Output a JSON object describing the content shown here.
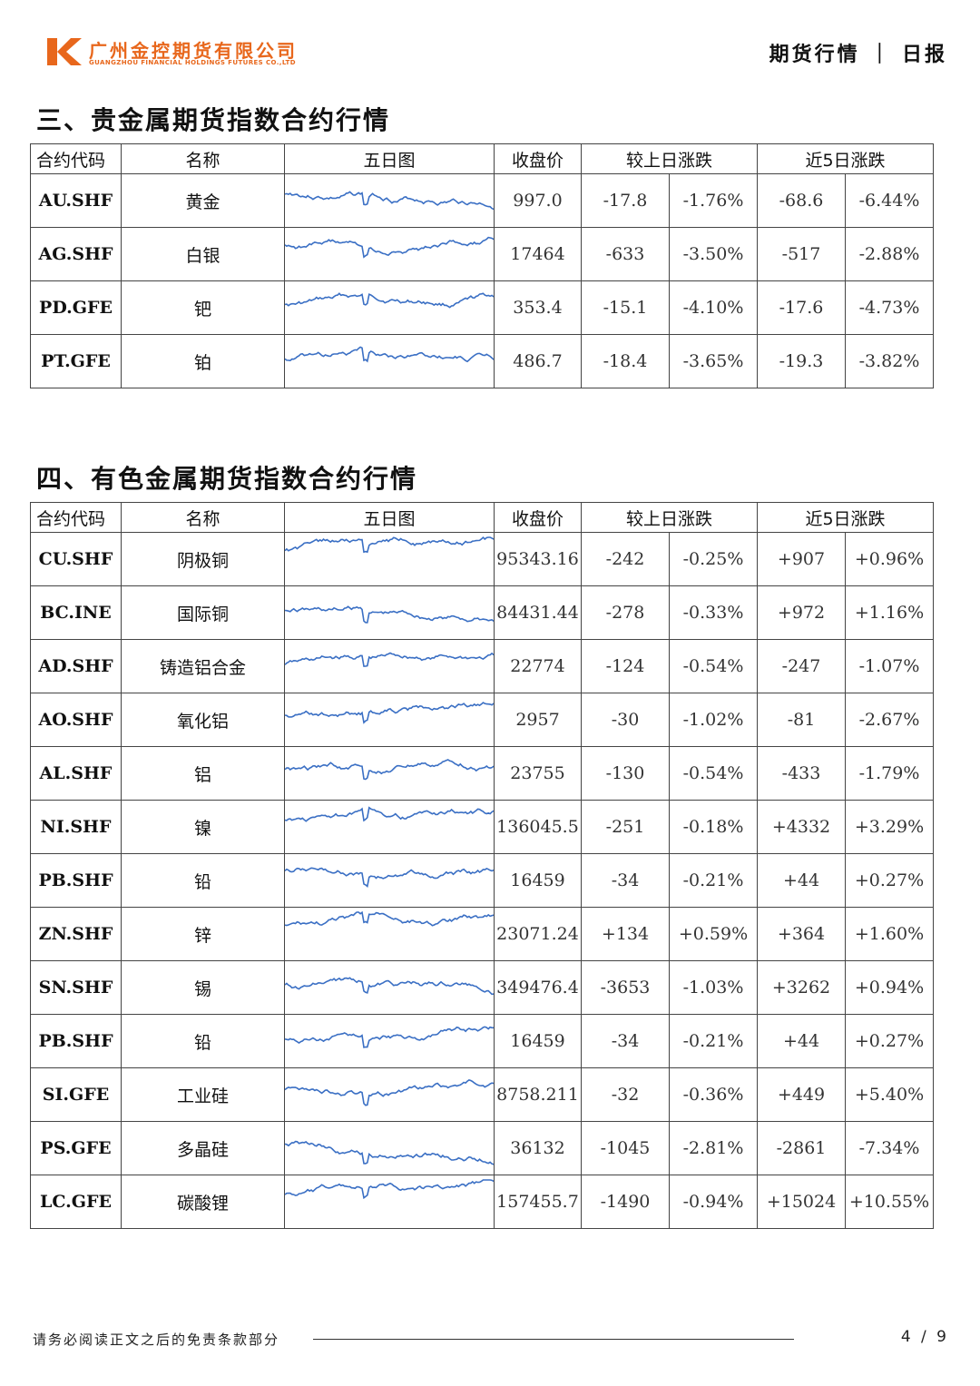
{
  "header": {
    "company_cn": "广州金控期货有限公司",
    "company_en": "GUANGZHOU FINANCIAL HOLDINGS FUTURES CO.,LTD",
    "doc_type": "期货行情 ｜ 日报"
  },
  "colors": {
    "brand": "#e8671c",
    "down": "#3e8e3e",
    "up": "#e02424",
    "sparkline": "#3a6fc4"
  },
  "columns": {
    "code": "合约代码",
    "name": "名称",
    "chart": "五日图",
    "close": "收盘价",
    "day_change": "较上日涨跌",
    "five_day_change": "近5日涨跌"
  },
  "sections": [
    {
      "title": "三、贵金属期货指数合约行情",
      "rows": [
        {
          "code": "AU.SHF",
          "name": "黄金",
          "close": "997.0",
          "chg": "-17.8",
          "chg_pct": "-1.76%",
          "chg5": "-68.6",
          "chg5_pct": "-6.44%"
        },
        {
          "code": "AG.SHF",
          "name": "白银",
          "close": "17464",
          "chg": "-633",
          "chg_pct": "-3.50%",
          "chg5": "-517",
          "chg5_pct": "-2.88%"
        },
        {
          "code": "PD.GFE",
          "name": "钯",
          "close": "353.4",
          "chg": "-15.1",
          "chg_pct": "-4.10%",
          "chg5": "-17.6",
          "chg5_pct": "-4.73%"
        },
        {
          "code": "PT.GFE",
          "name": "铂",
          "close": "486.7",
          "chg": "-18.4",
          "chg_pct": "-3.65%",
          "chg5": "-19.3",
          "chg5_pct": "-3.82%"
        }
      ]
    },
    {
      "title": "四、有色金属期货指数合约行情",
      "rows": [
        {
          "code": "CU.SHF",
          "name": "阴极铜",
          "close": "95343.16",
          "chg": "-242",
          "chg_pct": "-0.25%",
          "chg5": "+907",
          "chg5_pct": "+0.96%"
        },
        {
          "code": "BC.INE",
          "name": "国际铜",
          "close": "84431.44",
          "chg": "-278",
          "chg_pct": "-0.33%",
          "chg5": "+972",
          "chg5_pct": "+1.16%"
        },
        {
          "code": "AD.SHF",
          "name": "铸造铝合金",
          "close": "22774",
          "chg": "-124",
          "chg_pct": "-0.54%",
          "chg5": "-247",
          "chg5_pct": "-1.07%"
        },
        {
          "code": "AO.SHF",
          "name": "氧化铝",
          "close": "2957",
          "chg": "-30",
          "chg_pct": "-1.02%",
          "chg5": "-81",
          "chg5_pct": "-2.67%"
        },
        {
          "code": "AL.SHF",
          "name": "铝",
          "close": "23755",
          "chg": "-130",
          "chg_pct": "-0.54%",
          "chg5": "-433",
          "chg5_pct": "-1.79%"
        },
        {
          "code": "NI.SHF",
          "name": "镍",
          "close": "136045.5",
          "chg": "-251",
          "chg_pct": "-0.18%",
          "chg5": "+4332",
          "chg5_pct": "+3.29%"
        },
        {
          "code": "PB.SHF",
          "name": "铅",
          "close": "16459",
          "chg": "-34",
          "chg_pct": "-0.21%",
          "chg5": "+44",
          "chg5_pct": "+0.27%"
        },
        {
          "code": "ZN.SHF",
          "name": "锌",
          "close": "23071.24",
          "chg": "+134",
          "chg_pct": "+0.59%",
          "chg5": "+364",
          "chg5_pct": "+1.60%"
        },
        {
          "code": "SN.SHF",
          "name": "锡",
          "close": "349476.4",
          "chg": "-3653",
          "chg_pct": "-1.03%",
          "chg5": "+3262",
          "chg5_pct": "+0.94%"
        },
        {
          "code": "PB.SHF",
          "name": "铅",
          "close": "16459",
          "chg": "-34",
          "chg_pct": "-0.21%",
          "chg5": "+44",
          "chg5_pct": "+0.27%"
        },
        {
          "code": "SI.GFE",
          "name": "工业硅",
          "close": "8758.211",
          "chg": "-32",
          "chg_pct": "-0.36%",
          "chg5": "+449",
          "chg5_pct": "+5.40%"
        },
        {
          "code": "PS.GFE",
          "name": "多晶硅",
          "close": "36132",
          "chg": "-1045",
          "chg_pct": "-2.81%",
          "chg5": "-2861",
          "chg5_pct": "-7.34%"
        },
        {
          "code": "LC.GFE",
          "name": "碳酸锂",
          "close": "157455.7",
          "chg": "-1490",
          "chg_pct": "-0.94%",
          "chg5": "+15024",
          "chg5_pct": "+10.55%"
        }
      ]
    }
  ],
  "footer": {
    "disclaimer": "请务必阅读正文之后的免责条款部分",
    "page": "4 / 9"
  }
}
